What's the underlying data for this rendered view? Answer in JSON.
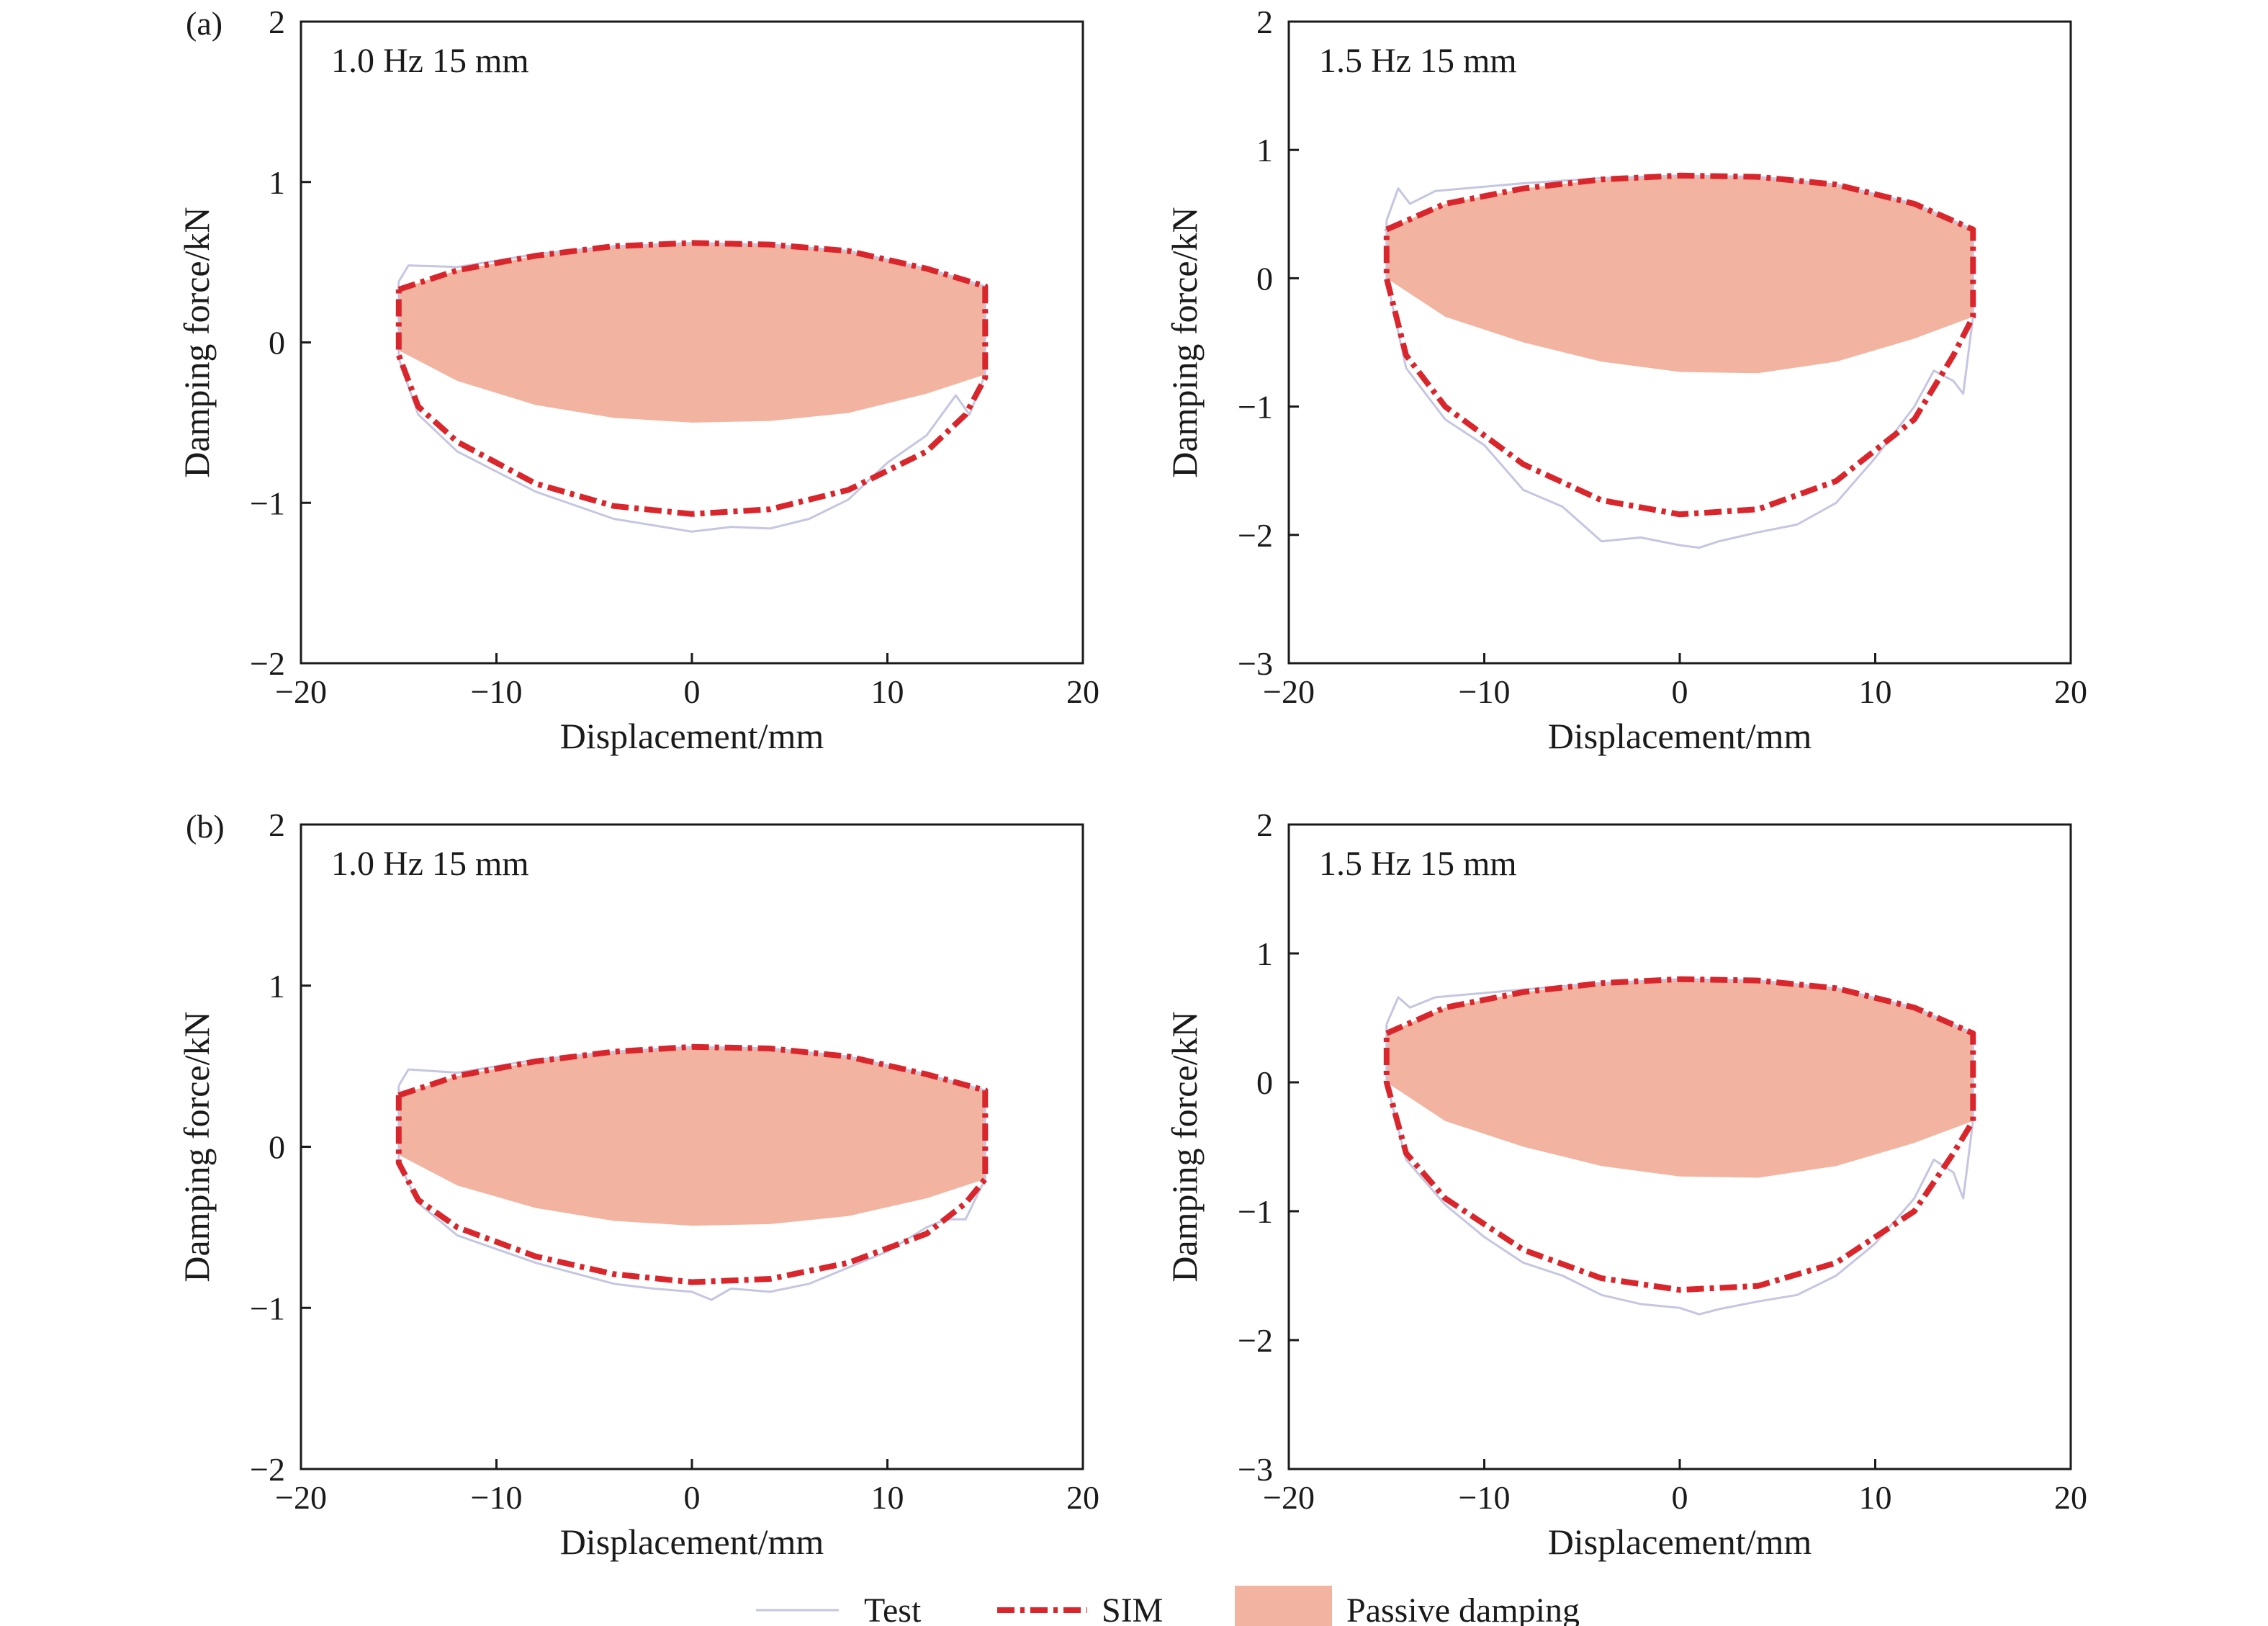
{
  "colors": {
    "test": "#c4c6e2",
    "sim": "#d9262c",
    "passive": "#f2b4a0",
    "axis": "#1a1a1a"
  },
  "legend": {
    "test": "Test",
    "sim": "SIM",
    "passive": "Passive damping"
  },
  "chart_data": [
    {
      "type": "line",
      "panel_label": "(a)",
      "annotation": "1.0 Hz 15 mm",
      "xlabel": "Displacement/mm",
      "ylabel": "Damping force/kN",
      "xlim": [
        -20,
        20
      ],
      "ylim": [
        -2,
        2
      ],
      "xticks": [
        -20,
        -10,
        0,
        10,
        20
      ],
      "yticks": [
        -2,
        -1,
        0,
        1,
        2
      ],
      "xtick_labels": [
        "−20",
        "−10",
        "0",
        "10",
        "20"
      ],
      "ytick_labels": [
        "−2",
        "−1",
        "0",
        "1",
        "2"
      ],
      "grid": false,
      "amplitude_mm": 15,
      "sim_upper": [
        [
          -15,
          0.33
        ],
        [
          -12,
          0.45
        ],
        [
          -8,
          0.54
        ],
        [
          -4,
          0.6
        ],
        [
          0,
          0.62
        ],
        [
          4,
          0.61
        ],
        [
          8,
          0.57
        ],
        [
          12,
          0.46
        ],
        [
          15,
          0.35
        ]
      ],
      "sim_lower": [
        [
          -15,
          -0.08
        ],
        [
          -14,
          -0.4
        ],
        [
          -12,
          -0.62
        ],
        [
          -8,
          -0.88
        ],
        [
          -4,
          -1.02
        ],
        [
          0,
          -1.07
        ],
        [
          4,
          -1.04
        ],
        [
          8,
          -0.92
        ],
        [
          12,
          -0.68
        ],
        [
          14,
          -0.45
        ],
        [
          15,
          -0.22
        ]
      ],
      "passive_upper": [
        [
          -15,
          0.33
        ],
        [
          -12,
          0.45
        ],
        [
          -8,
          0.54
        ],
        [
          -4,
          0.6
        ],
        [
          0,
          0.62
        ],
        [
          4,
          0.61
        ],
        [
          8,
          0.57
        ],
        [
          12,
          0.46
        ],
        [
          15,
          0.35
        ]
      ],
      "passive_lower": [
        [
          -15,
          -0.05
        ],
        [
          -12,
          -0.24
        ],
        [
          -8,
          -0.39
        ],
        [
          -4,
          -0.47
        ],
        [
          0,
          -0.5
        ],
        [
          4,
          -0.49
        ],
        [
          8,
          -0.44
        ],
        [
          12,
          -0.32
        ],
        [
          15,
          -0.2
        ]
      ],
      "test_upper": [
        [
          -15,
          0.38
        ],
        [
          -14.5,
          0.48
        ],
        [
          -12,
          0.47
        ],
        [
          -8,
          0.55
        ],
        [
          -4,
          0.6
        ],
        [
          0,
          0.62
        ],
        [
          4,
          0.61
        ],
        [
          8,
          0.57
        ],
        [
          12,
          0.46
        ],
        [
          15,
          0.35
        ]
      ],
      "test_lower": [
        [
          -15,
          -0.1
        ],
        [
          -14,
          -0.45
        ],
        [
          -12,
          -0.68
        ],
        [
          -8,
          -0.93
        ],
        [
          -4,
          -1.1
        ],
        [
          -2,
          -1.14
        ],
        [
          0,
          -1.18
        ],
        [
          2,
          -1.15
        ],
        [
          4,
          -1.16
        ],
        [
          6,
          -1.1
        ],
        [
          8,
          -0.98
        ],
        [
          10,
          -0.75
        ],
        [
          12,
          -0.58
        ],
        [
          13.5,
          -0.33
        ],
        [
          14.2,
          -0.45
        ],
        [
          15,
          -0.2
        ]
      ]
    },
    {
      "type": "line",
      "panel_label": "",
      "annotation": "1.5 Hz 15 mm",
      "xlabel": "Displacement/mm",
      "ylabel": "Damping force/kN",
      "xlim": [
        -20,
        20
      ],
      "ylim": [
        -3,
        2
      ],
      "xticks": [
        -20,
        -10,
        0,
        10,
        20
      ],
      "yticks": [
        -3,
        -2,
        -1,
        0,
        1,
        2
      ],
      "xtick_labels": [
        "−20",
        "−10",
        "0",
        "10",
        "20"
      ],
      "ytick_labels": [
        "−3",
        "−2",
        "−1",
        "0",
        "1",
        "2"
      ],
      "grid": false,
      "amplitude_mm": 15,
      "sim_upper": [
        [
          -15,
          0.38
        ],
        [
          -12,
          0.58
        ],
        [
          -8,
          0.7
        ],
        [
          -4,
          0.77
        ],
        [
          0,
          0.8
        ],
        [
          4,
          0.79
        ],
        [
          8,
          0.73
        ],
        [
          12,
          0.58
        ],
        [
          15,
          0.38
        ]
      ],
      "sim_lower": [
        [
          -15,
          0.0
        ],
        [
          -14,
          -0.6
        ],
        [
          -12,
          -1.0
        ],
        [
          -8,
          -1.45
        ],
        [
          -4,
          -1.73
        ],
        [
          0,
          -1.84
        ],
        [
          4,
          -1.8
        ],
        [
          8,
          -1.58
        ],
        [
          12,
          -1.1
        ],
        [
          14,
          -0.6
        ],
        [
          15,
          -0.3
        ]
      ],
      "passive_upper": [
        [
          -15,
          0.38
        ],
        [
          -12,
          0.58
        ],
        [
          -8,
          0.7
        ],
        [
          -4,
          0.77
        ],
        [
          0,
          0.8
        ],
        [
          4,
          0.79
        ],
        [
          8,
          0.73
        ],
        [
          12,
          0.58
        ],
        [
          15,
          0.38
        ]
      ],
      "passive_lower": [
        [
          -15,
          0.0
        ],
        [
          -12,
          -0.3
        ],
        [
          -8,
          -0.5
        ],
        [
          -4,
          -0.65
        ],
        [
          0,
          -0.73
        ],
        [
          4,
          -0.74
        ],
        [
          8,
          -0.65
        ],
        [
          12,
          -0.47
        ],
        [
          15,
          -0.3
        ]
      ],
      "test_upper": [
        [
          -15,
          0.45
        ],
        [
          -14.4,
          0.7
        ],
        [
          -13.8,
          0.58
        ],
        [
          -12.5,
          0.68
        ],
        [
          -8,
          0.74
        ],
        [
          -4,
          0.78
        ],
        [
          0,
          0.8
        ],
        [
          4,
          0.79
        ],
        [
          8,
          0.73
        ],
        [
          12,
          0.58
        ],
        [
          15,
          0.38
        ]
      ],
      "test_lower": [
        [
          -15,
          0.0
        ],
        [
          -14,
          -0.7
        ],
        [
          -12,
          -1.1
        ],
        [
          -10,
          -1.3
        ],
        [
          -8,
          -1.65
        ],
        [
          -6,
          -1.78
        ],
        [
          -4,
          -2.05
        ],
        [
          -2,
          -2.02
        ],
        [
          0,
          -2.08
        ],
        [
          1,
          -2.1
        ],
        [
          2,
          -2.05
        ],
        [
          4,
          -1.98
        ],
        [
          6,
          -1.92
        ],
        [
          8,
          -1.75
        ],
        [
          10,
          -1.4
        ],
        [
          12,
          -1.0
        ],
        [
          13,
          -0.72
        ],
        [
          14,
          -0.8
        ],
        [
          14.5,
          -0.9
        ],
        [
          15,
          -0.3
        ]
      ]
    },
    {
      "type": "line",
      "panel_label": "(b)",
      "annotation": "1.0 Hz 15 mm",
      "xlabel": "Displacement/mm",
      "ylabel": "Damping force/kN",
      "xlim": [
        -20,
        20
      ],
      "ylim": [
        -2,
        2
      ],
      "xticks": [
        -20,
        -10,
        0,
        10,
        20
      ],
      "yticks": [
        -2,
        -1,
        0,
        1,
        2
      ],
      "xtick_labels": [
        "−20",
        "−10",
        "0",
        "10",
        "20"
      ],
      "ytick_labels": [
        "−2",
        "−1",
        "0",
        "1",
        "2"
      ],
      "grid": false,
      "amplitude_mm": 15,
      "sim_upper": [
        [
          -15,
          0.32
        ],
        [
          -12,
          0.44
        ],
        [
          -8,
          0.53
        ],
        [
          -4,
          0.59
        ],
        [
          0,
          0.62
        ],
        [
          4,
          0.61
        ],
        [
          8,
          0.56
        ],
        [
          12,
          0.45
        ],
        [
          15,
          0.35
        ]
      ],
      "sim_lower": [
        [
          -15,
          -0.1
        ],
        [
          -14,
          -0.33
        ],
        [
          -12,
          -0.5
        ],
        [
          -8,
          -0.68
        ],
        [
          -4,
          -0.79
        ],
        [
          0,
          -0.84
        ],
        [
          4,
          -0.82
        ],
        [
          8,
          -0.72
        ],
        [
          12,
          -0.54
        ],
        [
          14,
          -0.35
        ],
        [
          15,
          -0.2
        ]
      ],
      "passive_upper": [
        [
          -15,
          0.32
        ],
        [
          -12,
          0.44
        ],
        [
          -8,
          0.53
        ],
        [
          -4,
          0.59
        ],
        [
          0,
          0.62
        ],
        [
          4,
          0.61
        ],
        [
          8,
          0.56
        ],
        [
          12,
          0.45
        ],
        [
          15,
          0.35
        ]
      ],
      "passive_lower": [
        [
          -15,
          -0.05
        ],
        [
          -12,
          -0.24
        ],
        [
          -8,
          -0.38
        ],
        [
          -4,
          -0.46
        ],
        [
          0,
          -0.49
        ],
        [
          4,
          -0.48
        ],
        [
          8,
          -0.43
        ],
        [
          12,
          -0.32
        ],
        [
          15,
          -0.2
        ]
      ],
      "test_upper": [
        [
          -15,
          0.38
        ],
        [
          -14.5,
          0.48
        ],
        [
          -12,
          0.46
        ],
        [
          -8,
          0.54
        ],
        [
          -4,
          0.59
        ],
        [
          0,
          0.62
        ],
        [
          4,
          0.61
        ],
        [
          8,
          0.56
        ],
        [
          12,
          0.45
        ],
        [
          15,
          0.35
        ]
      ],
      "test_lower": [
        [
          -15,
          -0.1
        ],
        [
          -14,
          -0.35
        ],
        [
          -12,
          -0.55
        ],
        [
          -8,
          -0.72
        ],
        [
          -4,
          -0.85
        ],
        [
          -2,
          -0.88
        ],
        [
          0,
          -0.9
        ],
        [
          1,
          -0.95
        ],
        [
          2,
          -0.88
        ],
        [
          4,
          -0.9
        ],
        [
          6,
          -0.85
        ],
        [
          8,
          -0.75
        ],
        [
          10,
          -0.65
        ],
        [
          12,
          -0.5
        ],
        [
          13,
          -0.45
        ],
        [
          14,
          -0.45
        ],
        [
          15,
          -0.2
        ]
      ]
    },
    {
      "type": "line",
      "panel_label": "",
      "annotation": "1.5 Hz 15 mm",
      "xlabel": "Displacement/mm",
      "ylabel": "Damping force/kN",
      "xlim": [
        -20,
        20
      ],
      "ylim": [
        -3,
        2
      ],
      "xticks": [
        -20,
        -10,
        0,
        10,
        20
      ],
      "yticks": [
        -3,
        -2,
        -1,
        0,
        1,
        2
      ],
      "xtick_labels": [
        "−20",
        "−10",
        "0",
        "10",
        "20"
      ],
      "ytick_labels": [
        "−3",
        "−2",
        "−1",
        "0",
        "1",
        "2"
      ],
      "grid": false,
      "amplitude_mm": 15,
      "sim_upper": [
        [
          -15,
          0.38
        ],
        [
          -12,
          0.58
        ],
        [
          -8,
          0.7
        ],
        [
          -4,
          0.77
        ],
        [
          0,
          0.8
        ],
        [
          4,
          0.79
        ],
        [
          8,
          0.73
        ],
        [
          12,
          0.58
        ],
        [
          15,
          0.38
        ]
      ],
      "sim_lower": [
        [
          -15,
          0.0
        ],
        [
          -14,
          -0.55
        ],
        [
          -12,
          -0.9
        ],
        [
          -8,
          -1.3
        ],
        [
          -4,
          -1.52
        ],
        [
          0,
          -1.61
        ],
        [
          4,
          -1.58
        ],
        [
          8,
          -1.4
        ],
        [
          12,
          -1.0
        ],
        [
          14,
          -0.55
        ],
        [
          15,
          -0.3
        ]
      ],
      "passive_upper": [
        [
          -15,
          0.38
        ],
        [
          -12,
          0.58
        ],
        [
          -8,
          0.7
        ],
        [
          -4,
          0.77
        ],
        [
          0,
          0.8
        ],
        [
          4,
          0.79
        ],
        [
          8,
          0.73
        ],
        [
          12,
          0.58
        ],
        [
          15,
          0.38
        ]
      ],
      "passive_lower": [
        [
          -15,
          0.0
        ],
        [
          -12,
          -0.3
        ],
        [
          -8,
          -0.5
        ],
        [
          -4,
          -0.65
        ],
        [
          0,
          -0.73
        ],
        [
          4,
          -0.74
        ],
        [
          8,
          -0.65
        ],
        [
          12,
          -0.47
        ],
        [
          15,
          -0.3
        ]
      ],
      "test_upper": [
        [
          -15,
          0.45
        ],
        [
          -14.4,
          0.66
        ],
        [
          -13.8,
          0.58
        ],
        [
          -12.5,
          0.66
        ],
        [
          -8,
          0.72
        ],
        [
          -4,
          0.77
        ],
        [
          0,
          0.8
        ],
        [
          4,
          0.79
        ],
        [
          8,
          0.73
        ],
        [
          12,
          0.58
        ],
        [
          15,
          0.38
        ]
      ],
      "test_lower": [
        [
          -15,
          0.0
        ],
        [
          -14,
          -0.6
        ],
        [
          -12,
          -0.95
        ],
        [
          -10,
          -1.2
        ],
        [
          -8,
          -1.4
        ],
        [
          -6,
          -1.5
        ],
        [
          -4,
          -1.65
        ],
        [
          -2,
          -1.72
        ],
        [
          0,
          -1.75
        ],
        [
          1,
          -1.8
        ],
        [
          2,
          -1.76
        ],
        [
          4,
          -1.7
        ],
        [
          6,
          -1.65
        ],
        [
          8,
          -1.5
        ],
        [
          10,
          -1.25
        ],
        [
          12,
          -0.9
        ],
        [
          13,
          -0.6
        ],
        [
          14,
          -0.7
        ],
        [
          14.5,
          -0.9
        ],
        [
          15,
          -0.3
        ]
      ]
    }
  ]
}
